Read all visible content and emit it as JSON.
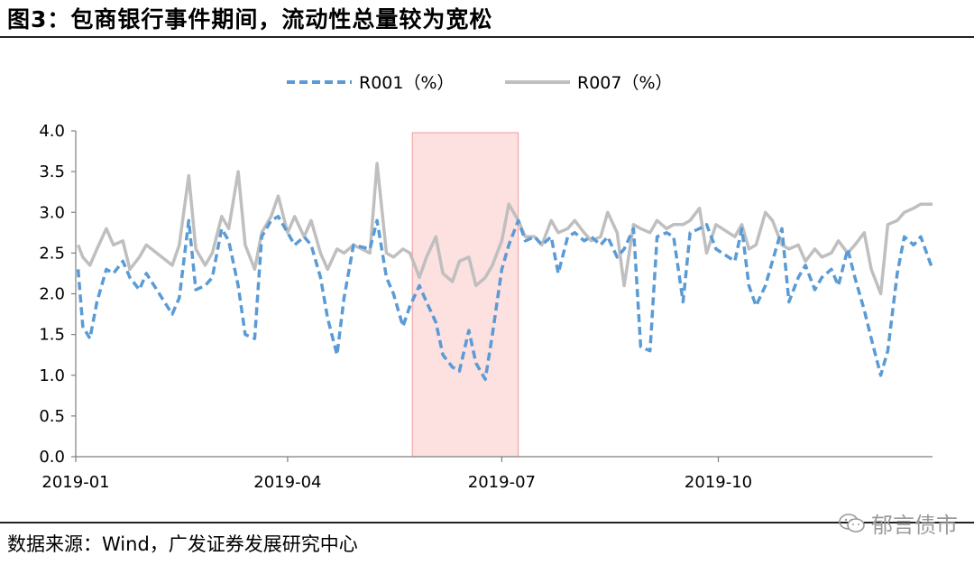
{
  "header": {
    "title": "图3：包商银行事件期间，流动性总量较为宽松"
  },
  "footer": {
    "source": "数据来源：Wind，广发证券发展研究中心",
    "watermark": "郁言债市"
  },
  "chart_data": {
    "type": "line",
    "title": "",
    "xlabel": "",
    "ylabel": "",
    "ylim": [
      0,
      4
    ],
    "yticks": [
      "0.0",
      "0.5",
      "1.0",
      "1.5",
      "2.0",
      "2.5",
      "3.0",
      "3.5",
      "4.0"
    ],
    "xticks": [
      "2019-01",
      "2019-04",
      "2019-07",
      "2019-10"
    ],
    "legend_position": "top",
    "grid": false,
    "highlight_range": {
      "from": "2019-05-24",
      "to": "2019-07-08",
      "color": "#fde0e0"
    },
    "x": [
      "2019-01-02",
      "2019-01-04",
      "2019-01-07",
      "2019-01-10",
      "2019-01-14",
      "2019-01-17",
      "2019-01-21",
      "2019-01-24",
      "2019-01-28",
      "2019-01-31",
      "2019-02-11",
      "2019-02-14",
      "2019-02-18",
      "2019-02-21",
      "2019-02-25",
      "2019-02-28",
      "2019-03-04",
      "2019-03-07",
      "2019-03-11",
      "2019-03-14",
      "2019-03-18",
      "2019-03-21",
      "2019-03-25",
      "2019-03-28",
      "2019-04-01",
      "2019-04-04",
      "2019-04-08",
      "2019-04-11",
      "2019-04-15",
      "2019-04-18",
      "2019-04-22",
      "2019-04-25",
      "2019-04-29",
      "2019-05-06",
      "2019-05-09",
      "2019-05-13",
      "2019-05-16",
      "2019-05-20",
      "2019-05-23",
      "2019-05-27",
      "2019-05-30",
      "2019-06-03",
      "2019-06-06",
      "2019-06-10",
      "2019-06-13",
      "2019-06-17",
      "2019-06-20",
      "2019-06-24",
      "2019-06-27",
      "2019-07-01",
      "2019-07-04",
      "2019-07-08",
      "2019-07-11",
      "2019-07-15",
      "2019-07-18",
      "2019-07-22",
      "2019-07-25",
      "2019-07-29",
      "2019-08-01",
      "2019-08-05",
      "2019-08-08",
      "2019-08-12",
      "2019-08-15",
      "2019-08-19",
      "2019-08-22",
      "2019-08-26",
      "2019-08-29",
      "2019-09-02",
      "2019-09-05",
      "2019-09-09",
      "2019-09-12",
      "2019-09-16",
      "2019-09-19",
      "2019-09-23",
      "2019-09-26",
      "2019-09-30",
      "2019-10-08",
      "2019-10-11",
      "2019-10-14",
      "2019-10-17",
      "2019-10-21",
      "2019-10-24",
      "2019-10-28",
      "2019-10-31",
      "2019-11-04",
      "2019-11-07",
      "2019-11-11",
      "2019-11-14",
      "2019-11-18",
      "2019-11-21",
      "2019-11-25",
      "2019-11-28",
      "2019-12-02",
      "2019-12-05",
      "2019-12-09",
      "2019-12-12",
      "2019-12-16",
      "2019-12-19",
      "2019-12-23",
      "2019-12-26",
      "2019-12-31"
    ],
    "series": [
      {
        "name": "R001（%）",
        "color": "#5b9bd5",
        "style": "dashed",
        "values": [
          2.3,
          1.6,
          1.45,
          1.9,
          2.3,
          2.25,
          2.4,
          2.2,
          2.05,
          2.25,
          1.75,
          1.95,
          2.9,
          2.05,
          2.1,
          2.2,
          2.8,
          2.65,
          2.1,
          1.5,
          1.45,
          2.7,
          2.9,
          2.95,
          2.75,
          2.6,
          2.7,
          2.6,
          2.2,
          1.7,
          1.25,
          1.95,
          2.6,
          2.55,
          2.9,
          2.2,
          2.0,
          1.6,
          1.85,
          2.1,
          1.9,
          1.65,
          1.25,
          1.1,
          1.05,
          1.55,
          1.15,
          0.95,
          1.5,
          2.3,
          2.6,
          2.9,
          2.65,
          2.7,
          2.6,
          2.7,
          2.25,
          2.7,
          2.75,
          2.65,
          2.7,
          2.6,
          2.7,
          2.45,
          2.55,
          2.8,
          1.35,
          1.3,
          2.7,
          2.75,
          2.7,
          1.9,
          2.75,
          2.8,
          2.85,
          2.55,
          2.4,
          2.8,
          2.1,
          1.85,
          2.1,
          2.4,
          2.8,
          1.9,
          2.2,
          2.35,
          2.05,
          2.2,
          2.3,
          2.1,
          2.55,
          2.2,
          1.8,
          1.45,
          1.0,
          1.3,
          2.25,
          2.7,
          2.6,
          2.7,
          2.3
        ]
      },
      {
        "name": "R007（%）",
        "color": "#bfbfbf",
        "style": "solid",
        "values": [
          2.6,
          2.45,
          2.35,
          2.55,
          2.8,
          2.6,
          2.65,
          2.3,
          2.45,
          2.6,
          2.35,
          2.6,
          3.45,
          2.55,
          2.35,
          2.5,
          2.95,
          2.8,
          3.5,
          2.6,
          2.3,
          2.75,
          2.95,
          3.2,
          2.75,
          2.95,
          2.7,
          2.9,
          2.5,
          2.3,
          2.55,
          2.5,
          2.6,
          2.5,
          3.6,
          2.5,
          2.45,
          2.55,
          2.5,
          2.2,
          2.45,
          2.7,
          2.25,
          2.15,
          2.4,
          2.45,
          2.1,
          2.2,
          2.35,
          2.65,
          3.1,
          2.9,
          2.7,
          2.7,
          2.6,
          2.9,
          2.75,
          2.8,
          2.9,
          2.75,
          2.65,
          2.7,
          3.0,
          2.75,
          2.1,
          2.85,
          2.8,
          2.75,
          2.9,
          2.8,
          2.85,
          2.85,
          2.9,
          3.05,
          2.5,
          2.85,
          2.7,
          2.85,
          2.55,
          2.6,
          3.0,
          2.9,
          2.6,
          2.55,
          2.6,
          2.4,
          2.55,
          2.45,
          2.5,
          2.65,
          2.5,
          2.6,
          2.75,
          2.3,
          2.0,
          2.85,
          2.9,
          3.0,
          3.05,
          3.1,
          3.1
        ]
      }
    ]
  }
}
